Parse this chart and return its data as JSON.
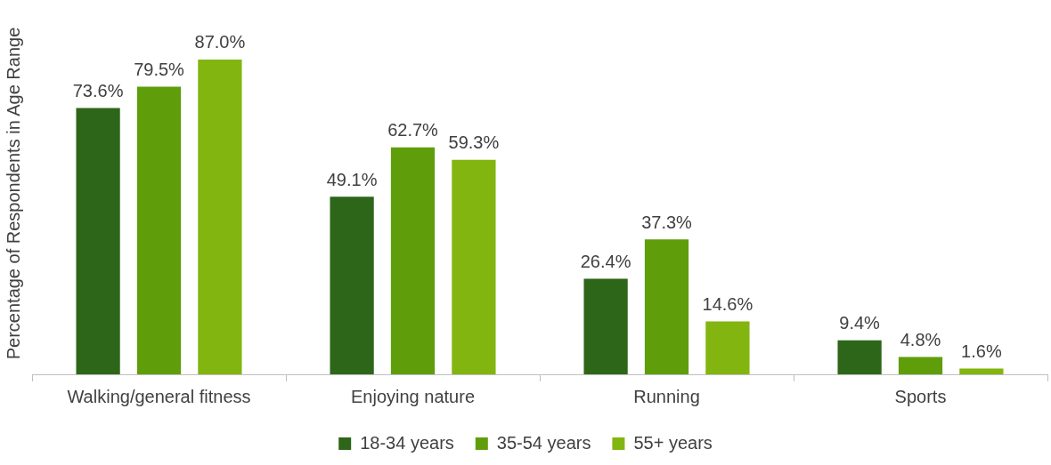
{
  "chart_data": {
    "type": "bar",
    "ylabel": "Percentage of Respondents in Age Range",
    "categories": [
      "Walking/general fitness",
      "Enjoying nature",
      "Running",
      "Sports"
    ],
    "series": [
      {
        "name": "18-34 years",
        "color": "#2d6618",
        "values": [
          73.6,
          49.1,
          26.4,
          9.4
        ],
        "value_labels": [
          "73.6%",
          "49.1%",
          "26.4%",
          "9.4%"
        ]
      },
      {
        "name": "35-54 years",
        "color": "#5f9e0a",
        "values": [
          79.5,
          62.7,
          37.3,
          4.8
        ],
        "value_labels": [
          "79.5%",
          "62.7%",
          "37.3%",
          "4.8%"
        ]
      },
      {
        "name": "55+ years",
        "color": "#82b50f",
        "values": [
          87.0,
          59.3,
          14.6,
          1.6
        ],
        "value_labels": [
          "87.0%",
          "59.3%",
          "14.6%",
          "1.6%"
        ]
      }
    ],
    "legend": "bottom",
    "grid": false
  }
}
